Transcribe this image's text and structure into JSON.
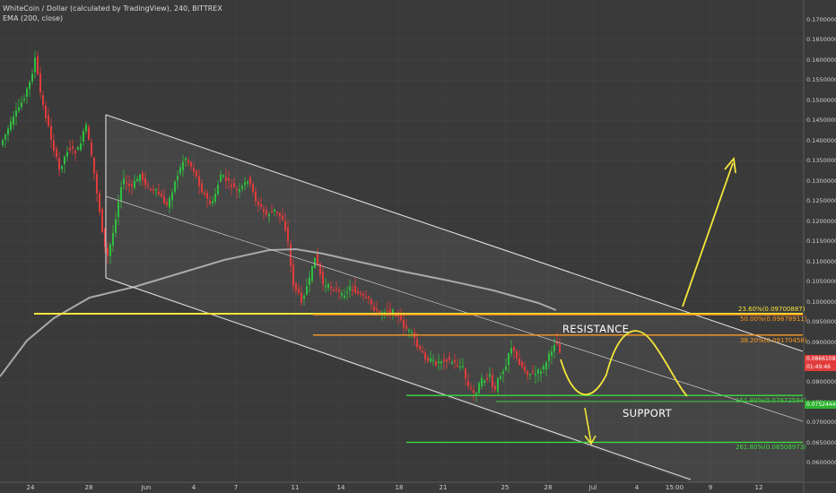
{
  "header": {
    "title": "WhiteCoin / Dollar (calculated by TradingView), 240, BITTREX",
    "indicator": "EMA (200, close)"
  },
  "chart_data": {
    "type": "candlestick",
    "y_ticks": [
      "0.17000000",
      "0.16500000",
      "0.16000000",
      "0.15500000",
      "0.15000000",
      "0.14500000",
      "0.14000000",
      "0.13500000",
      "0.13000000",
      "0.12500000",
      "0.12000000",
      "0.11500000",
      "0.11000000",
      "0.10500000",
      "0.10000000",
      "0.09500000",
      "0.09000000",
      "0.08500000",
      "0.08000000",
      "0.07500000",
      "0.07000000",
      "0.06500000",
      "0.06000000"
    ],
    "x_ticks": [
      "24",
      "28",
      "Jun",
      "4",
      "7",
      "11",
      "14",
      "18",
      "21",
      "25",
      "28",
      "Jul",
      "4",
      "15:00",
      "9",
      "12"
    ],
    "ylim": [
      0.058,
      0.174
    ],
    "fib_levels": [
      {
        "label": "23.60%(0.09700887)",
        "value": 0.09700887,
        "color": "#f5e63a"
      },
      {
        "label": "50.00%(0.09678911)",
        "value": 0.09678911,
        "color": "#ff9a1f"
      },
      {
        "label": "38.20%(0.09170458)",
        "value": 0.09170458,
        "color": "#ff9a1f"
      },
      {
        "label": "161.80%(0.07672594)",
        "value": 0.07672594,
        "color": "#3cdc3c"
      },
      {
        "label": "261.80%(0.06508973)",
        "value": 0.06508973,
        "color": "#3cdc3c"
      }
    ],
    "price_tags": [
      {
        "text": "0.08661082",
        "color": "#e23b3b"
      },
      {
        "text": "01:49:46",
        "color": "#e23b3b"
      },
      {
        "text": "0.07524440",
        "color": "#2db32d"
      }
    ],
    "annotations": [
      "RESISTANCE",
      "SUPPORT"
    ],
    "colors": {
      "up": "#2fbf3f",
      "down": "#e23b3b",
      "ema": "#a9a9a9",
      "channel": "#dcdcdc",
      "arrow": "#f5e63a"
    }
  }
}
